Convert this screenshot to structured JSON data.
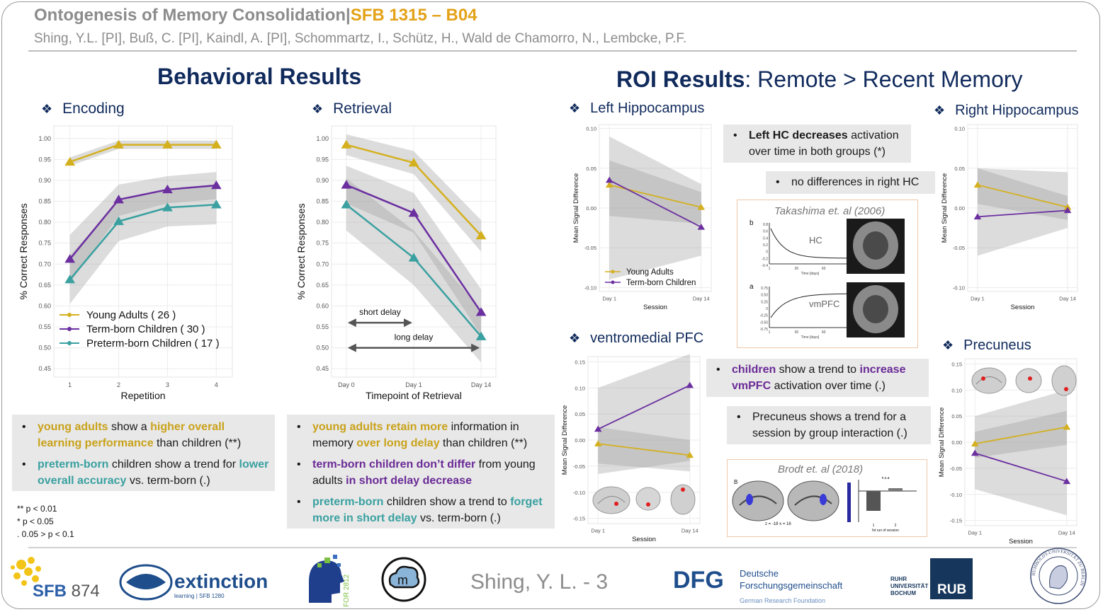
{
  "header": {
    "title_main": "Ontogenesis of Memory Consolidation",
    "title_sep": "|",
    "title_project": "SFB 1315 – B04",
    "authors": "Shing, Y.L. [PI], Buß, C. [PI], Kaindl, A. [PI], Schommartz, I., Schütz, H., Wald de Chamorro, N., Lembcke, P.F."
  },
  "behavioral": {
    "title": "Behavioral Results",
    "encoding_title": "Encoding",
    "retrieval_title": "Retrieval",
    "encoding_summary": [
      {
        "parts": [
          {
            "t": "young adults",
            "c": "y"
          },
          {
            "t": " show a "
          },
          {
            "t": "higher overall learning performance",
            "c": "y"
          },
          {
            "t": " than children (**)"
          }
        ]
      },
      {
        "parts": [
          {
            "t": "preterm-born",
            "c": "t"
          },
          {
            "t": " children show a trend for "
          },
          {
            "t": "lower overall accuracy",
            "c": "t"
          },
          {
            "t": " vs. term-born (.)"
          }
        ]
      }
    ],
    "retrieval_summary": [
      {
        "parts": [
          {
            "t": "young adults retain more",
            "c": "y"
          },
          {
            "t": " information in memory "
          },
          {
            "t": "over long delay",
            "c": "y"
          },
          {
            "t": " than children (**)"
          }
        ]
      },
      {
        "parts": [
          {
            "t": "term-born children don’t differ",
            "c": "p"
          },
          {
            "t": " from young adults "
          },
          {
            "t": "in short delay decrease",
            "c": "p"
          }
        ]
      },
      {
        "parts": [
          {
            "t": "preterm-born",
            "c": "t"
          },
          {
            "t": " children show a trend to "
          },
          {
            "t": "forget more in short delay",
            "c": "t"
          },
          {
            "t": " vs. term-born (.)"
          }
        ]
      }
    ],
    "significance": [
      "** p < 0.01",
      "* p < 0.05",
      ". 0.05 > p < 0.1"
    ]
  },
  "roi": {
    "title_bold": "ROI Results",
    "title_rest": ": Remote > Recent Memory",
    "left_hc_title": "Left Hippocampus",
    "right_hc_title": "Right Hippocampus",
    "vmpfc_title": "ventromedial PFC",
    "precuneus_title": "Precuneus",
    "note_left_hc": [
      {
        "t": "Left HC decreases",
        "c": "b"
      },
      {
        "t": " activation over time in both groups (*)"
      }
    ],
    "note_right_hc": "no differences in right HC",
    "note_vmpfc": [
      {
        "t": "children",
        "c": "p"
      },
      {
        "t": " show a trend to "
      },
      {
        "t": "increase vmPFC",
        "c": "p"
      },
      {
        "t": " activation over time (.)"
      }
    ],
    "note_precuneus": "Precuneus shows a trend for a session by group interaction  (.)",
    "ref1": "Takashima et. al (2006)",
    "ref2": "Brodt et. al (2018)",
    "ref1_labels": {
      "hc": "HC",
      "vmpfc": "vmPFC",
      "b": "b",
      "a": "a",
      "xlab": "Time [days]",
      "ylab": "Effect size [a.u.]",
      "xticks": [
        "1",
        "30",
        "60",
        "90"
      ],
      "hc_yticks": [
        "0.8",
        "0.6",
        "0.4",
        "0.2",
        "0",
        "-0.2",
        "-0.4"
      ],
      "vm_yticks": [
        "0.75",
        "0.50",
        "0.25",
        "0",
        "-0.25",
        "-0.50",
        "-0.75"
      ]
    },
    "ref2_labels": {
      "b": "B",
      "coords": "z = -18   x = 16",
      "ns": "n.s.a",
      "xlab": "fst run of session",
      "ticks": [
        "1",
        "2"
      ]
    }
  },
  "chart_data": [
    {
      "id": "encoding",
      "type": "line",
      "xlabel": "Repetition",
      "ylabel": "% Correct Responses",
      "categories": [
        "1",
        "2",
        "3",
        "4"
      ],
      "ylim": [
        0.43,
        1.03
      ],
      "yticks": [
        "0.45",
        "0.50",
        "0.55",
        "0.60",
        "0.65",
        "0.70",
        "0.75",
        "0.80",
        "0.85",
        "0.90",
        "0.95",
        "1.00"
      ],
      "grid": true,
      "legend": "bottom-left",
      "series": [
        {
          "name": "Young Adults ( 26 )",
          "color": "#d4b01e",
          "values": [
            0.944,
            0.985,
            0.985,
            0.985
          ],
          "lower": [
            0.935,
            0.975,
            0.975,
            0.975
          ],
          "upper": [
            0.955,
            0.995,
            0.995,
            0.995
          ]
        },
        {
          "name": "Term-born Children ( 30 )",
          "color": "#6b2fa0",
          "values": [
            0.712,
            0.854,
            0.878,
            0.888
          ],
          "lower": [
            0.655,
            0.815,
            0.845,
            0.855
          ],
          "upper": [
            0.77,
            0.89,
            0.91,
            0.92
          ]
        },
        {
          "name": "Preterm-born Children ( 17 )",
          "color": "#3aa0a0",
          "values": [
            0.663,
            0.802,
            0.835,
            0.842
          ],
          "lower": [
            0.605,
            0.755,
            0.79,
            0.795
          ],
          "upper": [
            0.72,
            0.85,
            0.88,
            0.888
          ]
        }
      ]
    },
    {
      "id": "retrieval",
      "type": "line",
      "xlabel": "Timepoint of Retrieval",
      "ylabel": "% Correct Responses",
      "categories": [
        "Day 0",
        "Day 1",
        "Day 14"
      ],
      "ylim": [
        0.43,
        1.03
      ],
      "yticks": [
        "0.45",
        "0.50",
        "0.55",
        "0.60",
        "0.65",
        "0.70",
        "0.75",
        "0.80",
        "0.85",
        "0.90",
        "0.95",
        "1.00"
      ],
      "grid": true,
      "annotations": [
        "short delay",
        "long delay"
      ],
      "series": [
        {
          "name": "Young Adults",
          "color": "#d4b01e",
          "values": [
            0.985,
            0.942,
            0.768
          ],
          "lower": [
            0.96,
            0.915,
            0.73
          ],
          "upper": [
            1.01,
            0.97,
            0.805
          ]
        },
        {
          "name": "Term-born Children",
          "color": "#6b2fa0",
          "values": [
            0.889,
            0.822,
            0.585
          ],
          "lower": [
            0.845,
            0.775,
            0.53
          ],
          "upper": [
            0.935,
            0.87,
            0.64
          ]
        },
        {
          "name": "Preterm-born Children",
          "color": "#3aa0a0",
          "values": [
            0.842,
            0.715,
            0.527
          ],
          "lower": [
            0.78,
            0.65,
            0.465
          ],
          "upper": [
            0.905,
            0.78,
            0.59
          ]
        }
      ]
    },
    {
      "id": "left_hc",
      "type": "line",
      "xlabel": "Session",
      "ylabel": "Mean Signal Difference",
      "categories": [
        "Day 1",
        "Day 14"
      ],
      "ylim": [
        -0.105,
        0.105
      ],
      "yticks": [
        "-0.10",
        "-0.05",
        "0.00",
        "0.05",
        "0.10"
      ],
      "legend": "bottom-left",
      "series": [
        {
          "name": "Young Adults",
          "color": "#d4b01e",
          "values": [
            0.029,
            0.001
          ],
          "lower": [
            -0.01,
            -0.02
          ],
          "upper": [
            0.06,
            0.02
          ]
        },
        {
          "name": "Term-born Children",
          "color": "#6b2fa0",
          "values": [
            0.035,
            -0.024
          ],
          "lower": [
            -0.09,
            -0.06
          ],
          "upper": [
            0.09,
            0.03
          ]
        }
      ]
    },
    {
      "id": "right_hc",
      "type": "line",
      "xlabel": "Session",
      "ylabel": "Mean Signal Difference",
      "categories": [
        "Day 1",
        "Day 14"
      ],
      "ylim": [
        -0.105,
        0.105
      ],
      "yticks": [
        "-0.10",
        "-0.05",
        "0.00",
        "0.05",
        "0.10"
      ],
      "series": [
        {
          "name": "Young Adults",
          "color": "#d4b01e",
          "values": [
            0.029,
            0.001
          ],
          "lower": [
            0.005,
            -0.015
          ],
          "upper": [
            0.05,
            0.015
          ]
        },
        {
          "name": "Term-born Children",
          "color": "#6b2fa0",
          "values": [
            -0.011,
            -0.003
          ],
          "lower": [
            -0.06,
            -0.025
          ],
          "upper": [
            0.05,
            0.045
          ]
        }
      ]
    },
    {
      "id": "vmpfc",
      "type": "line",
      "xlabel": "Session",
      "ylabel": "Mean Signal Difference",
      "categories": [
        "Day 1",
        "Day 14"
      ],
      "ylim": [
        -0.16,
        0.16
      ],
      "yticks": [
        "-0.15",
        "-0.10",
        "-0.05",
        "0.00",
        "0.05",
        "0.10",
        "0.15"
      ],
      "series": [
        {
          "name": "Young Adults",
          "color": "#d4b01e",
          "values": [
            -0.007,
            -0.029
          ],
          "lower": [
            -0.045,
            -0.06
          ],
          "upper": [
            0.025,
            0.0
          ]
        },
        {
          "name": "Term-born Children",
          "color": "#6b2fa0",
          "values": [
            0.021,
            0.105
          ],
          "lower": [
            -0.065,
            -0.04
          ],
          "upper": [
            0.1,
            0.165
          ]
        }
      ]
    },
    {
      "id": "precuneus",
      "type": "line",
      "xlabel": "Session",
      "ylabel": "Mean Signal Difference",
      "categories": [
        "Day 1",
        "Day 14"
      ],
      "ylim": [
        -0.16,
        0.16
      ],
      "yticks": [
        "-0.15",
        "-0.10",
        "-0.05",
        "0.00",
        "0.05",
        "0.10",
        "0.15"
      ],
      "series": [
        {
          "name": "Young Adults",
          "color": "#d4b01e",
          "values": [
            -0.003,
            0.029
          ],
          "lower": [
            -0.03,
            -0.005
          ],
          "upper": [
            0.02,
            0.06
          ]
        },
        {
          "name": "Term-born Children",
          "color": "#6b2fa0",
          "values": [
            -0.021,
            -0.075
          ],
          "lower": [
            -0.09,
            -0.14
          ],
          "upper": [
            0.05,
            0.1
          ]
        }
      ]
    }
  ],
  "footer": {
    "page_label": "Shing, Y. L. - 3",
    "sfb874_text": "SFB 874",
    "extinction_text": "extinction",
    "extinction_sub": "learning | SFB 1280",
    "for2812": "FOR 2812",
    "dfg_abbr": "DFG",
    "dfg_line1": "Deutsche",
    "dfg_line2": "Forschungsgemeinschaft",
    "dfg_line3": "German Research Foundation",
    "rub_text": "RUHR UNIVERSITÄT BOCHUM",
    "rub_logo": "RUB",
    "hu_text": "HUMBOLDT-UNIVERSITÄT ZU BERLIN"
  },
  "colors": {
    "navy": "#102a5c",
    "gold": "#e3a217",
    "young": "#d4b01e",
    "term": "#6b2fa0",
    "preterm": "#3aa0a0"
  }
}
